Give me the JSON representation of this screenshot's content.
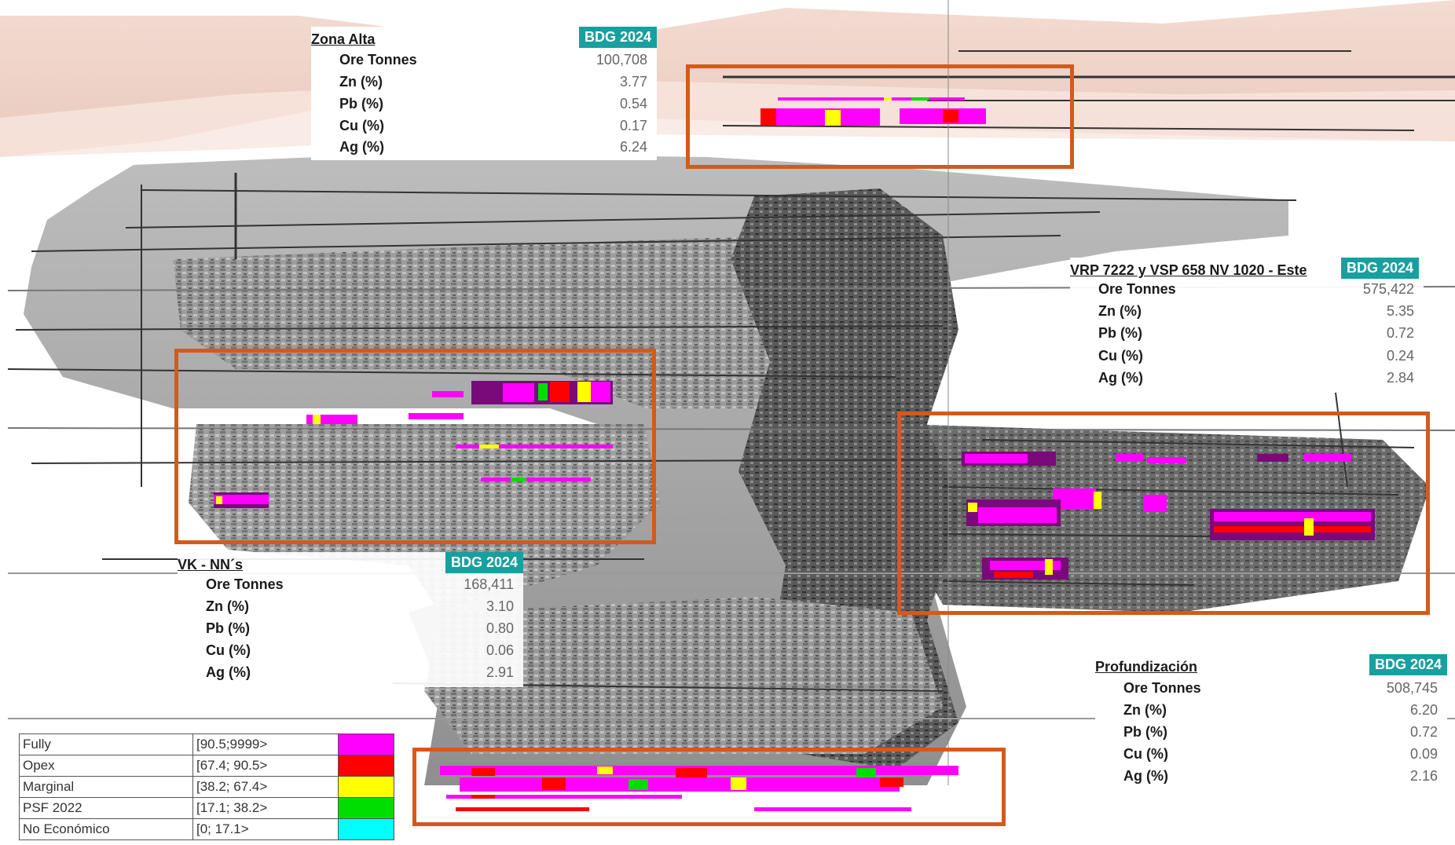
{
  "zones": [
    {
      "title": "Zona Alta",
      "badge": "BDG 2024",
      "rows": [
        {
          "label": "Ore Tonnes",
          "value": "100,708"
        },
        {
          "label": "Zn (%)",
          "value": "3.77"
        },
        {
          "label": "Pb (%)",
          "value": "0.54"
        },
        {
          "label": "Cu (%)",
          "value": "0.17"
        },
        {
          "label": "Ag (%)",
          "value": "6.24"
        }
      ]
    },
    {
      "title": "VRP 7222 y VSP 658 NV 1020 - Este",
      "badge": "BDG 2024",
      "rows": [
        {
          "label": "Ore Tonnes",
          "value": "575,422"
        },
        {
          "label": "Zn (%)",
          "value": "5.35"
        },
        {
          "label": "Pb (%)",
          "value": "0.72"
        },
        {
          "label": "Cu (%)",
          "value": "0.24"
        },
        {
          "label": "Ag (%)",
          "value": "2.84"
        }
      ]
    },
    {
      "title": "VK - NN´s",
      "badge": "BDG 2024",
      "rows": [
        {
          "label": "Ore Tonnes",
          "value": "168,411"
        },
        {
          "label": "Zn (%)",
          "value": "3.10"
        },
        {
          "label": "Pb (%)",
          "value": "0.80"
        },
        {
          "label": "Cu (%)",
          "value": "0.06"
        },
        {
          "label": "Ag (%)",
          "value": "2.91"
        }
      ]
    },
    {
      "title": "Profundización",
      "badge": "BDG 2024",
      "rows": [
        {
          "label": "Ore Tonnes",
          "value": "508,745"
        },
        {
          "label": "Zn (%)",
          "value": "6.20"
        },
        {
          "label": "Pb (%)",
          "value": "0.72"
        },
        {
          "label": "Cu (%)",
          "value": "0.09"
        },
        {
          "label": "Ag (%)",
          "value": "2.16"
        }
      ]
    }
  ],
  "legend": [
    {
      "name": "Fully",
      "range": "[90.5;9999>",
      "color": "#ff00ff"
    },
    {
      "name": "Opex",
      "range": "[67.4; 90.5>",
      "color": "#ff0000"
    },
    {
      "name": "Marginal",
      "range": "[38.2; 67.4>",
      "color": "#ffff00"
    },
    {
      "name": "PSF 2022",
      "range": "[17.1; 38.2>",
      "color": "#00dd00"
    },
    {
      "name": "No Económico",
      "range": "[0; 17.1>",
      "color": "#00ffff"
    }
  ],
  "colors": {
    "zone_outline": "#d35a1c",
    "badge": "#17a0a0",
    "fully": "#ff00ff",
    "opex": "#ff0000",
    "marginal": "#ffff00",
    "psf": "#00dd00",
    "purple_block": "#7a0a7a",
    "rock_dark": "#555555",
    "rock_light": "#a8a8a8",
    "terrain": "#e8c8bc"
  }
}
